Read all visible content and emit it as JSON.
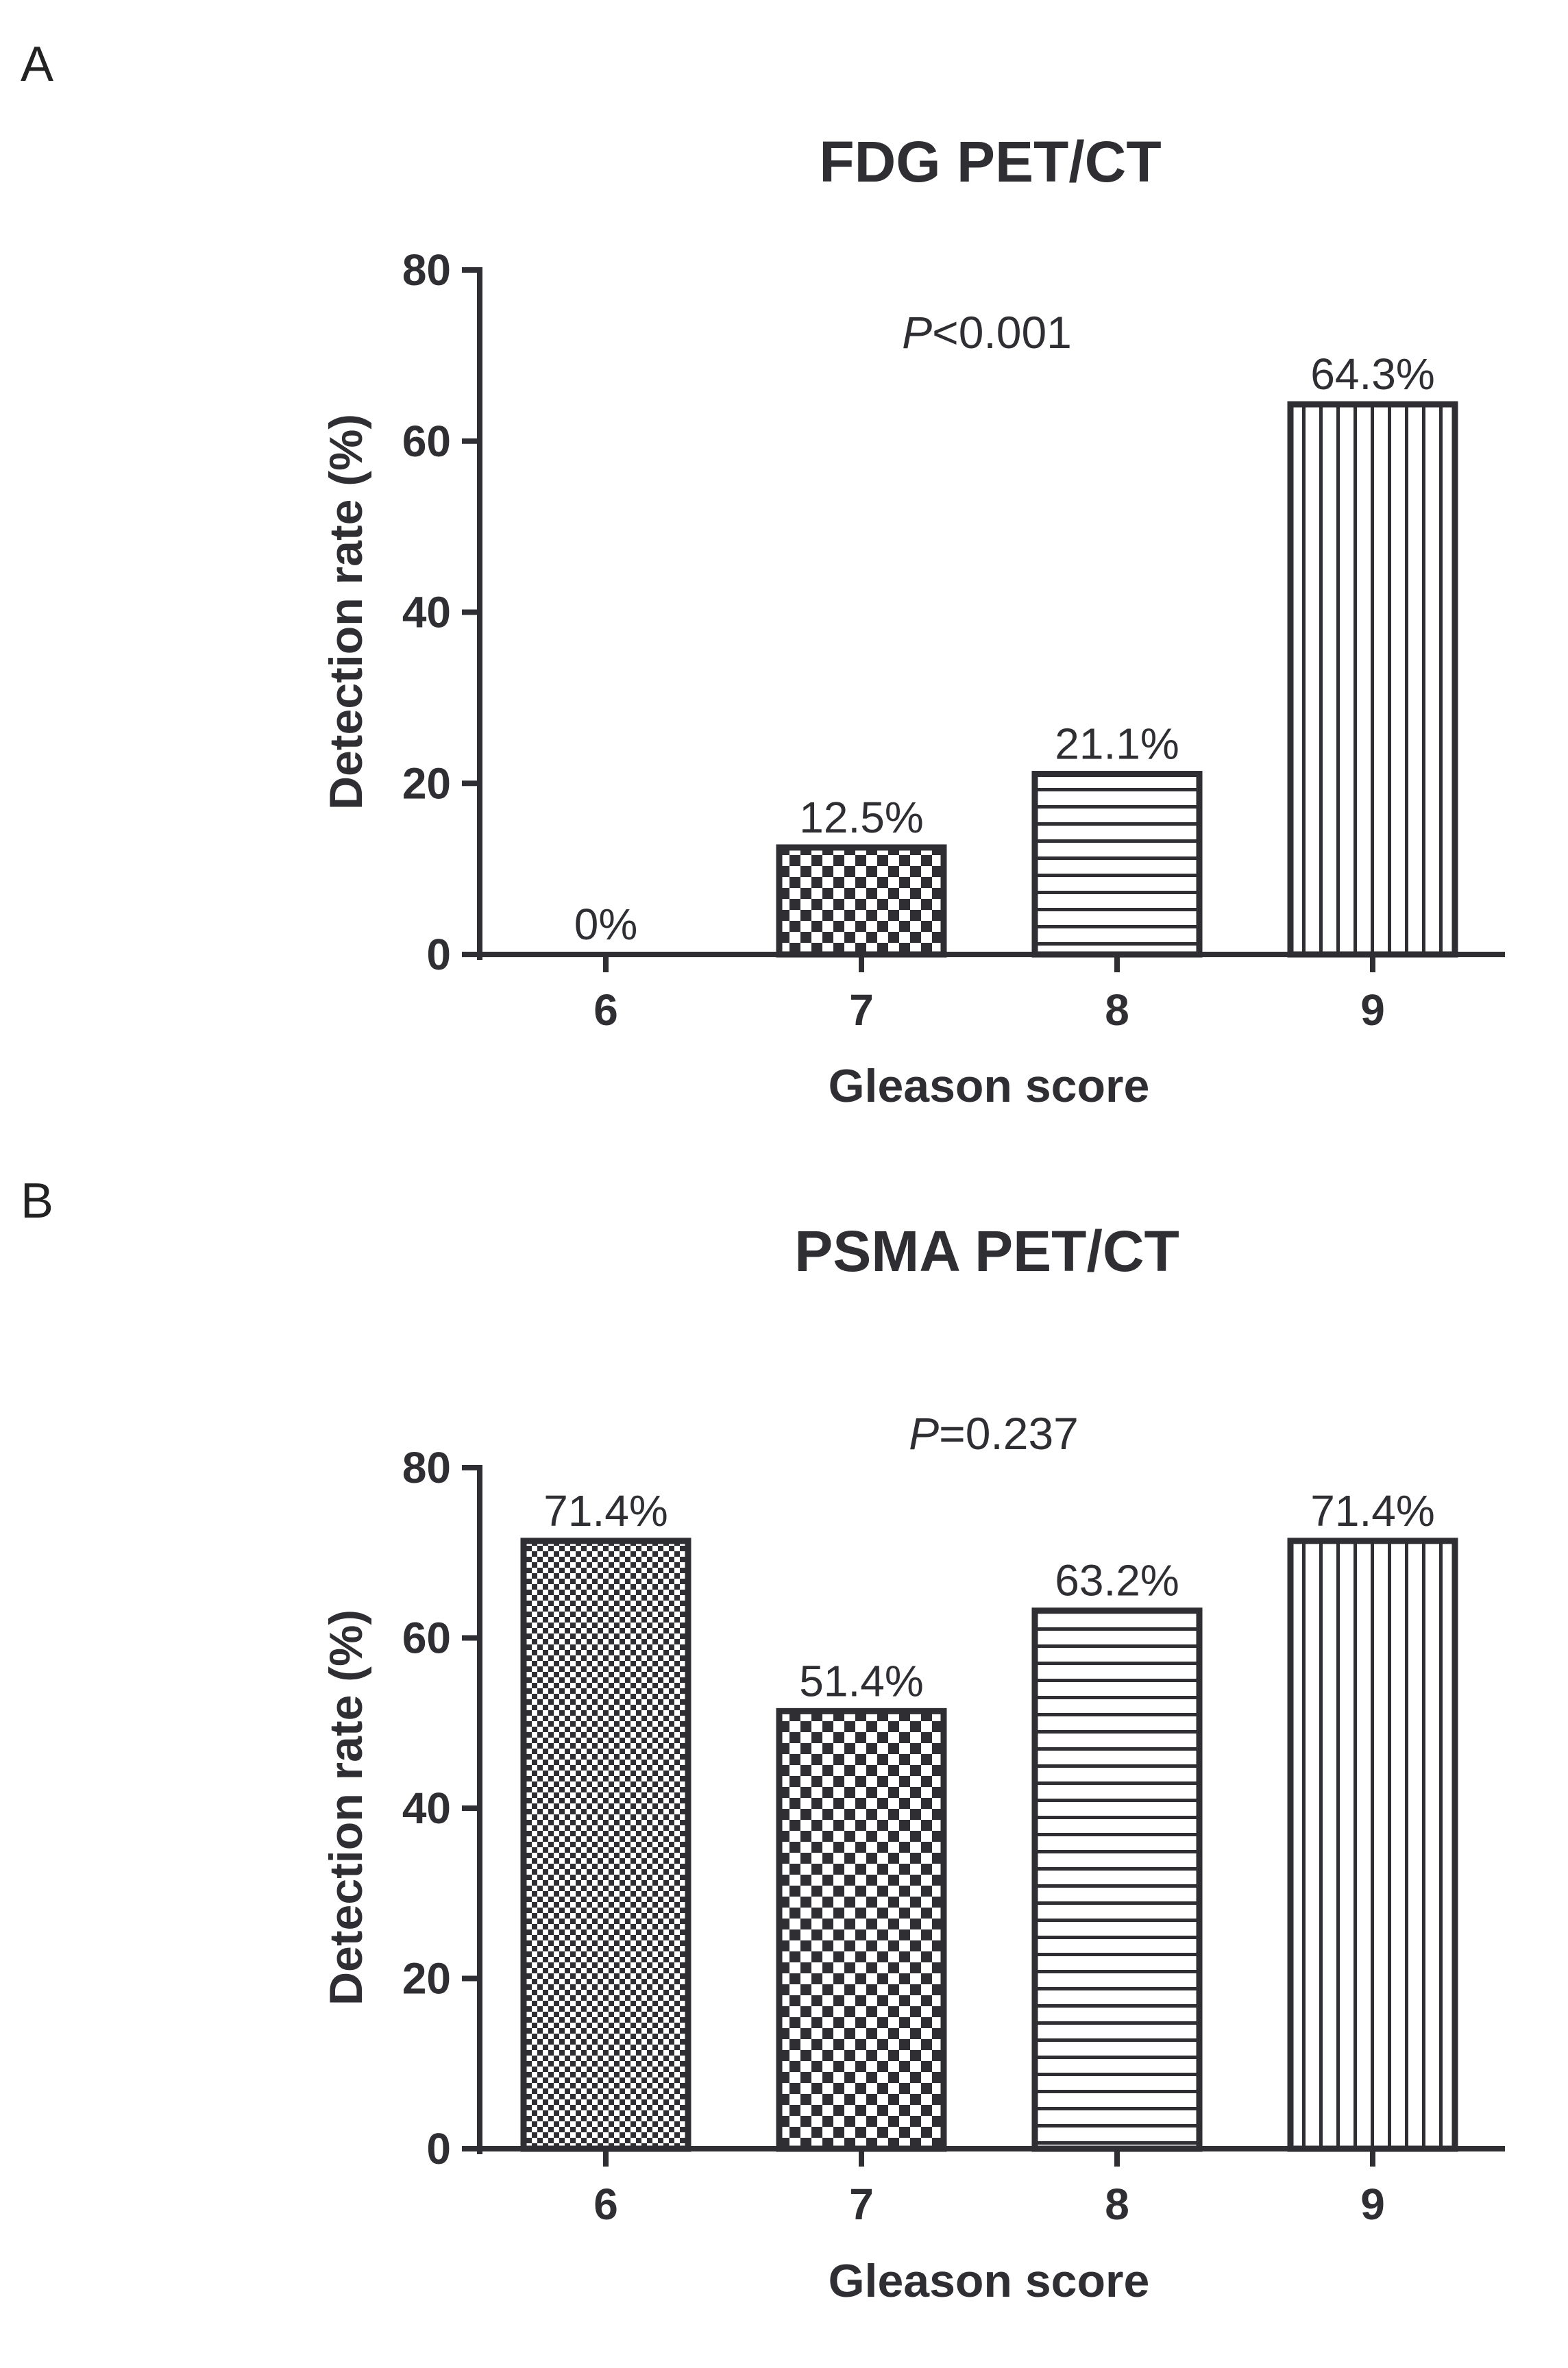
{
  "chart_data": [
    {
      "panel": "A",
      "type": "bar",
      "title": "FDG PET/CT",
      "annotation": {
        "p_symbol": "P",
        "p_text": "<0.001"
      },
      "xlabel": "Gleason score",
      "ylabel": "Detection rate (%)",
      "categories": [
        "6",
        "7",
        "8",
        "9"
      ],
      "values": [
        0,
        12.5,
        21.1,
        64.3
      ],
      "data_labels": [
        "0%",
        "12.5%",
        "21.1%",
        "64.3%"
      ],
      "patterns": [
        "fine-checker",
        "checker",
        "horizontal",
        "vertical"
      ],
      "ylim": [
        0,
        80
      ],
      "yticks": [
        "0",
        "20",
        "40",
        "60",
        "80"
      ],
      "ytick_values": [
        0,
        20,
        40,
        60,
        80
      ]
    },
    {
      "panel": "B",
      "type": "bar",
      "title": "PSMA PET/CT",
      "annotation": {
        "p_symbol": "P",
        "p_text": "=0.237"
      },
      "xlabel": "Gleason score",
      "ylabel": "Detection rate (%)",
      "categories": [
        "6",
        "7",
        "8",
        "9"
      ],
      "values": [
        71.4,
        51.4,
        63.2,
        71.4
      ],
      "data_labels": [
        "71.4%",
        "51.4%",
        "63.2%",
        "71.4%"
      ],
      "patterns": [
        "fine-checker",
        "checker",
        "horizontal",
        "vertical"
      ],
      "ylim": [
        0,
        80
      ],
      "yticks": [
        "0",
        "20",
        "40",
        "60",
        "80"
      ],
      "ytick_values": [
        0,
        20,
        40,
        60,
        80
      ]
    }
  ],
  "colors": {
    "ink": "#2e2e33",
    "background": "#ffffff"
  }
}
